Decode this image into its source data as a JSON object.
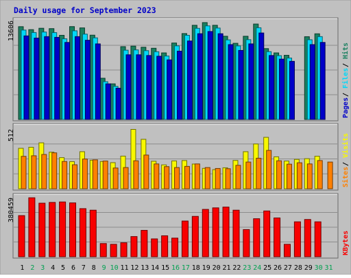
{
  "chart_data": {
    "type": "bar",
    "title": "Daily usage for September 2023",
    "categories": [
      "1",
      "2",
      "3",
      "4",
      "5",
      "6",
      "7",
      "8",
      "9",
      "10",
      "11",
      "12",
      "13",
      "14",
      "15",
      "16",
      "17",
      "18",
      "19",
      "20",
      "21",
      "22",
      "23",
      "24",
      "25",
      "26",
      "27",
      "28",
      "29",
      "30",
      "31"
    ],
    "weekend_days": [
      "2",
      "3",
      "9",
      "10",
      "16",
      "17",
      "23",
      "24",
      "30",
      "31"
    ],
    "panels": [
      {
        "id": "hits",
        "max_label": "13606",
        "ymax": 13606,
        "right_labels": [
          "Pages",
          "Files",
          "Hits"
        ],
        "series": [
          {
            "name": "Hits",
            "color": "#1a8060",
            "values": [
              12770,
              12360,
              12550,
              12500,
              11580,
              12780,
              12600,
              11600,
              5670,
              4900,
              10020,
              10090,
              9940,
              9800,
              9160,
              10520,
              11820,
              12960,
              13330,
              12960,
              11450,
              10480,
              11450,
              13130,
              9750,
              9160,
              8830,
              null,
              11390,
              11790,
              null
            ]
          },
          {
            "name": "Files",
            "color": "#00d8f8",
            "values": [
              12300,
              11960,
              12030,
              11950,
              11100,
              12200,
              11740,
              11230,
              5200,
              4550,
              9530,
              9570,
              9470,
              9320,
              8730,
              10130,
              11580,
              12540,
              12880,
              12580,
              10950,
              10120,
              10980,
              12620,
              9330,
              8780,
              8450,
              null,
              10970,
              11400,
              null
            ]
          },
          {
            "name": "Pages",
            "color": "#0000c8",
            "values": [
              11500,
              11200,
              11400,
              11300,
              10600,
              11400,
              10900,
              10400,
              4900,
              4300,
              8900,
              8900,
              8800,
              8700,
              8200,
              9400,
              10800,
              11800,
              12100,
              11800,
              10300,
              9500,
              10400,
              11900,
              8800,
              8300,
              8000,
              null,
              10300,
              10600,
              null
            ]
          }
        ]
      },
      {
        "id": "visits",
        "max_label": "512",
        "ymax": 512,
        "right_labels": [
          "Sites",
          "Visits"
        ],
        "series": [
          {
            "name": "Visits",
            "color": "#f8f800",
            "values": [
              347,
              356,
              394,
              314,
              267,
              233,
              318,
              245,
              234,
              224,
              280,
              509,
              424,
              236,
              205,
              239,
              242,
              212,
              175,
              164,
              180,
              243,
              318,
              384,
              441,
              274,
              238,
              252,
              258,
              279,
              null
            ]
          },
          {
            "name": "Sites",
            "color": "#ff8000",
            "values": [
              278,
              283,
              294,
              308,
              234,
              206,
              255,
              248,
              238,
              178,
              182,
              240,
              289,
              213,
              190,
              182,
              192,
              213,
              182,
              174,
              172,
              201,
              229,
              262,
              329,
              240,
              211,
              223,
              213,
              242,
              229
            ]
          }
        ]
      },
      {
        "id": "kbytes",
        "max_label": "380459",
        "ymax": 380459,
        "right_labels": [
          "KBytes"
        ],
        "series": [
          {
            "name": "KBytes",
            "color": "#f80000",
            "values": [
              265000,
              380000,
              345000,
              350000,
              353000,
              347000,
              310000,
              300000,
              85000,
              80000,
              90000,
              130000,
              170000,
              115000,
              135000,
              120000,
              230000,
              260000,
              305000,
              315000,
              320000,
              300000,
              175000,
              245000,
              295000,
              250000,
              80000,
              225000,
              240000,
              225000,
              null
            ]
          }
        ]
      }
    ],
    "grid": true,
    "legend": "right-vertical"
  },
  "colors": {
    "background": "#c0c0c0",
    "title": "#0000c8",
    "weekday_label": "#000000",
    "weekend_label": "#00a050",
    "max_label": "#000000"
  }
}
